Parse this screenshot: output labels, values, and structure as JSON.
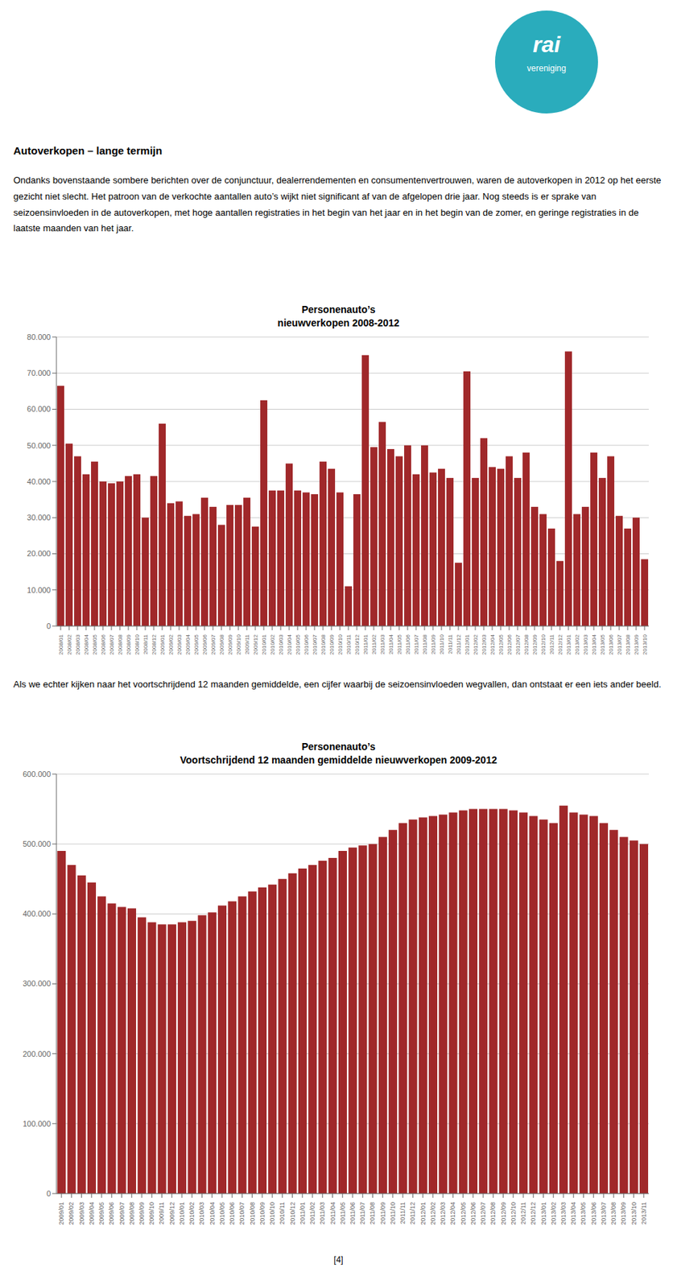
{
  "title": "Autoverkopen – lange termijn",
  "annotations": [
    {
      "text": "rai",
      "color": "#2AACBC"
    },
    {
      "text": "vereniging",
      "color": "#2AACBC"
    },
    {
      "text": "Ondanks bovenstaande sombere berichten over de conjunctuur, dealerrendementen en consumentenvertrouwen, waren de autoverkopen in 2012 op het eerste gezicht niet slecht. Het patroon van de verkochte aantallen auto’s wijkt niet significant af van de afgelopen drie jaar. Nog steeds is er sprake van seizoensinvloeden in de autoverkopen, met hoge aantallen registraties in het begin van het jaar en in het begin van de zomer, en geringe registraties in de laatste maanden van het jaar."
    },
    {
      "text": "Als we echter kijken naar het voortschrijdend 12 maanden gemiddelde, een cijfer waarbij de seizoensinvloeden wegvallen, dan ontstaat er een iets ander beeld."
    },
    {
      "text": "[4]"
    }
  ],
  "chart_data": [
    {
      "type": "bar",
      "title": "Personenauto’s",
      "subtitle": "nieuwverkopen 2008-2012",
      "color": "#A0282A",
      "grid": true,
      "ylim": [
        0,
        80000
      ],
      "yticks": [
        0,
        {
          "value": 10000,
          "label": "10.000"
        },
        {
          "value": 20000,
          "label": "20.000"
        },
        {
          "value": 30000,
          "label": "30.000"
        },
        {
          "value": 40000,
          "label": "40.000"
        },
        {
          "value": 50000,
          "label": "50.000"
        },
        {
          "value": 60000,
          "label": "60.000"
        },
        {
          "value": 70000,
          "label": "70.000"
        },
        {
          "value": 80000,
          "label": "80.000"
        }
      ],
      "categories": [
        "2008/01",
        "2008/02",
        "2008/03",
        "2008/04",
        "2008/05",
        "2008/06",
        "2008/07",
        "2008/08",
        "2008/09",
        "2008/10",
        "2008/11",
        "2008/12",
        "2009/01",
        "2009/02",
        "2009/03",
        "2009/04",
        "2009/05",
        "2009/06",
        "2009/07",
        "2009/08",
        "2009/09",
        "2009/10",
        "2009/11",
        "2009/12",
        "2010/01",
        "2010/02",
        "2010/03",
        "2010/04",
        "2010/05",
        "2010/06",
        "2010/07",
        "2010/08",
        "2010/09",
        "2010/10",
        "2010/11",
        "2010/12",
        "2011/01",
        "2011/02",
        "2011/03",
        "2011/04",
        "2011/05",
        "2011/06",
        "2011/07",
        "2011/08",
        "2011/09",
        "2011/10",
        "2011/11",
        "2011/12",
        "2012/01",
        "2012/02",
        "2012/03",
        "2012/04",
        "2012/05",
        "2012/06",
        "2012/07",
        "2012/08",
        "2012/09",
        "2012/10",
        "2012/11",
        "2012/12",
        "2013/01",
        "2013/02",
        "2013/03",
        "2013/04",
        "2013/05",
        "2013/06",
        "2013/07",
        "2013/08",
        "2013/09",
        "2013/10"
      ],
      "values": [
        66500,
        50500,
        47000,
        42000,
        45500,
        40000,
        39500,
        40000,
        41500,
        42000,
        30000,
        41500,
        56000,
        34000,
        34500,
        30500,
        31000,
        35500,
        33000,
        28000,
        33500,
        33500,
        35500,
        27500,
        62500,
        37500,
        37500,
        45000,
        37500,
        37000,
        36500,
        45500,
        43500,
        37000,
        11000,
        36500,
        75000,
        49500,
        56500,
        49000,
        47000,
        50000,
        42000,
        50000,
        42500,
        43500,
        41000,
        17500,
        70500,
        41000,
        52000,
        44000,
        43500,
        47000,
        41000,
        48000,
        33000,
        31000,
        27000,
        18000,
        76000,
        31000,
        33000,
        48000,
        41000,
        47000,
        30500,
        27000,
        30000,
        18500
      ]
    },
    {
      "type": "bar",
      "title": "Personenauto’s",
      "subtitle": "Voortschrijdend 12 maanden gemiddelde nieuwverkopen 2009-2012",
      "color": "#A0282A",
      "grid": true,
      "ylim": [
        0,
        600000
      ],
      "yticks": [
        0,
        {
          "value": 100000,
          "label": "100.000"
        },
        {
          "value": 200000,
          "label": "200.000"
        },
        {
          "value": 300000,
          "label": "300.000"
        },
        {
          "value": 400000,
          "label": "400.000"
        },
        {
          "value": 500000,
          "label": "500.000"
        },
        {
          "value": 600000,
          "label": "600.000"
        }
      ],
      "categories": [
        "2009/01",
        "2009/02",
        "2009/03",
        "2009/04",
        "2009/05",
        "2009/06",
        "2009/07",
        "2009/08",
        "2009/09",
        "2009/10",
        "2009/11",
        "2009/12",
        "2010/01",
        "2010/02",
        "2010/03",
        "2010/04",
        "2010/05",
        "2010/06",
        "2010/07",
        "2010/08",
        "2010/09",
        "2010/10",
        "2010/11",
        "2010/12",
        "2011/01",
        "2011/02",
        "2011/03",
        "2011/04",
        "2011/05",
        "2011/06",
        "2011/07",
        "2011/08",
        "2011/09",
        "2011/10",
        "2011/11",
        "2011/12",
        "2012/01",
        "2012/02",
        "2012/03",
        "2012/04",
        "2012/05",
        "2012/06",
        "2012/07",
        "2012/08",
        "2012/09",
        "2012/10",
        "2012/11",
        "2012/12",
        "2013/01",
        "2013/02",
        "2013/03",
        "2013/04",
        "2013/05",
        "2013/06",
        "2013/07",
        "2013/08",
        "2013/09",
        "2013/10",
        "2013/11"
      ],
      "values": [
        490000,
        470000,
        455000,
        445000,
        425000,
        415000,
        410000,
        408000,
        395000,
        388000,
        385000,
        385000,
        388000,
        390000,
        398000,
        402000,
        412000,
        418000,
        425000,
        432000,
        438000,
        442000,
        450000,
        458000,
        465000,
        470000,
        476000,
        480000,
        490000,
        495000,
        498000,
        500000,
        510000,
        520000,
        530000,
        535000,
        538000,
        540000,
        542000,
        545000,
        548000,
        550000,
        550000,
        550000,
        550000,
        548000,
        545000,
        540000,
        535000,
        530000,
        555000,
        545000,
        542000,
        540000,
        530000,
        520000,
        510000,
        505000,
        500000
      ]
    }
  ]
}
